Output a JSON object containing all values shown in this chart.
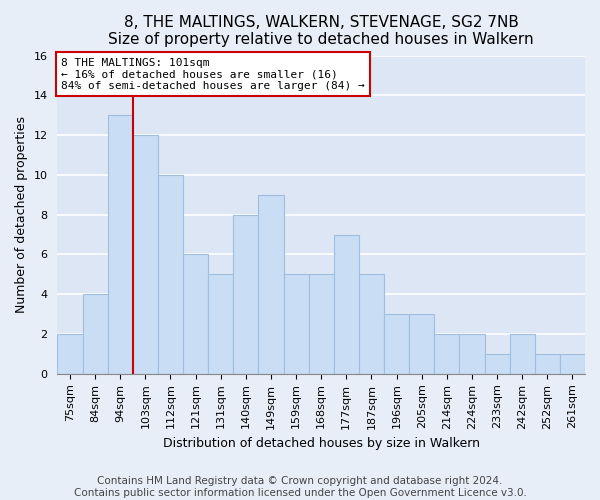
{
  "title": "8, THE MALTINGS, WALKERN, STEVENAGE, SG2 7NB",
  "subtitle": "Size of property relative to detached houses in Walkern",
  "xlabel": "Distribution of detached houses by size in Walkern",
  "ylabel": "Number of detached properties",
  "bar_labels": [
    "75sqm",
    "84sqm",
    "94sqm",
    "103sqm",
    "112sqm",
    "121sqm",
    "131sqm",
    "140sqm",
    "149sqm",
    "159sqm",
    "168sqm",
    "177sqm",
    "187sqm",
    "196sqm",
    "205sqm",
    "214sqm",
    "224sqm",
    "233sqm",
    "242sqm",
    "252sqm",
    "261sqm"
  ],
  "bar_values": [
    2,
    4,
    13,
    12,
    10,
    6,
    5,
    8,
    9,
    5,
    5,
    7,
    5,
    3,
    3,
    2,
    2,
    1,
    2,
    1,
    1
  ],
  "bar_color": "#c9ddf5",
  "bar_edge_color": "#a0bedd",
  "reference_line_index": 2,
  "reference_line_color": "#cc0000",
  "annotation_text": "8 THE MALTINGS: 101sqm\n← 16% of detached houses are smaller (16)\n84% of semi-detached houses are larger (84) →",
  "annotation_box_facecolor": "#ffffff",
  "annotation_box_edgecolor": "#cc0000",
  "ylim": [
    0,
    16
  ],
  "yticks": [
    0,
    2,
    4,
    6,
    8,
    10,
    12,
    14,
    16
  ],
  "background_color": "#e8eef8",
  "plot_background_color": "#dce6f5",
  "grid_color": "#ffffff",
  "title_fontsize": 11,
  "subtitle_fontsize": 10,
  "axis_label_fontsize": 9,
  "tick_fontsize": 8,
  "footer_fontsize": 7.5,
  "footer_line1": "Contains HM Land Registry data © Crown copyright and database right 2024.",
  "footer_line2": "Contains public sector information licensed under the Open Government Licence v3.0."
}
